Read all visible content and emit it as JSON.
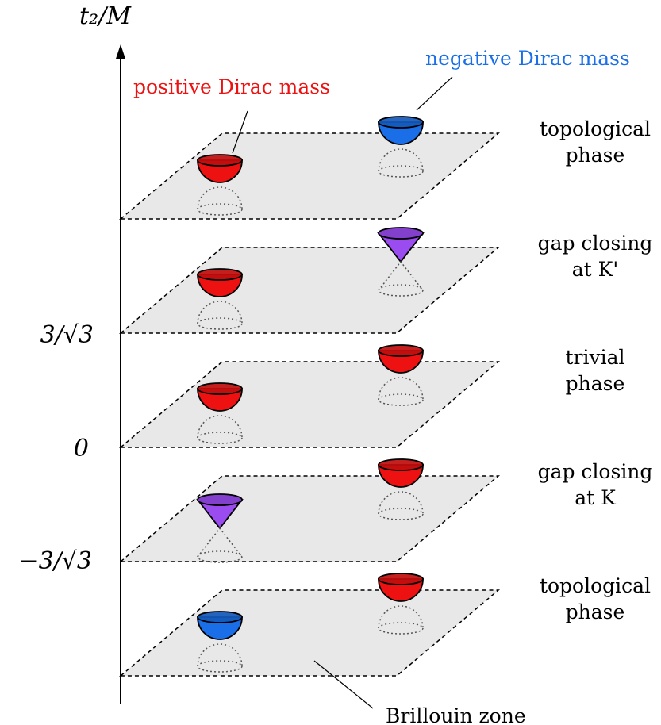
{
  "axis": {
    "label": "t₂/M",
    "ticks": [
      {
        "label": "3/√3"
      },
      {
        "label": "0"
      },
      {
        "label": "−3/√3"
      }
    ]
  },
  "callouts": {
    "positive": "positive Dirac mass",
    "negative": "negative Dirac mass",
    "bz": "Brillouin zone"
  },
  "colors": {
    "positive": "#ee1111",
    "negative": "#1a6fe8",
    "gapless": "#9b4cf0",
    "callout_positive": "#ee1111",
    "callout_negative": "#1a6fe8",
    "plane_fill": "#e8e8e8"
  },
  "layers": [
    {
      "name": "topological-phase-top",
      "phase": [
        "topological",
        "phase"
      ],
      "cone_k": "positive",
      "cone_kp": "negative"
    },
    {
      "name": "gap-closing-kprime",
      "phase": [
        "gap closing",
        "at K'"
      ],
      "cone_k": "positive",
      "cone_kp": "gapless"
    },
    {
      "name": "trivial-phase",
      "phase": [
        "trivial",
        "phase"
      ],
      "cone_k": "positive",
      "cone_kp": "positive"
    },
    {
      "name": "gap-closing-k",
      "phase": [
        "gap closing",
        "at K"
      ],
      "cone_k": "gapless",
      "cone_kp": "positive"
    },
    {
      "name": "topological-phase-bottom",
      "phase": [
        "topological",
        "phase"
      ],
      "cone_k": "negative",
      "cone_kp": "positive"
    }
  ]
}
